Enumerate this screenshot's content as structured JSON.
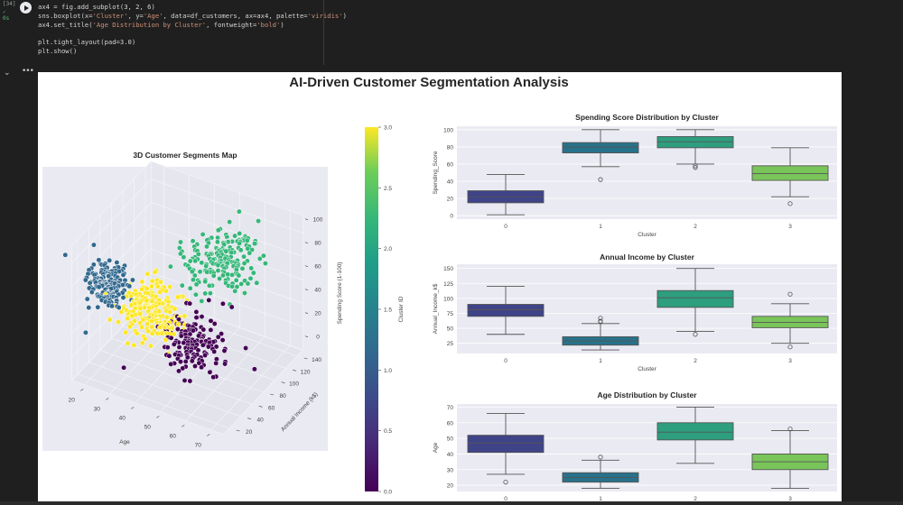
{
  "cell": {
    "execution_count": "[34]",
    "status": "✓ 0s",
    "code_lines": [
      "ax4 = fig.add_subplot(3, 2, 6)",
      "sns.boxplot(x='Cluster', y='Age', data=df_customers, ax=ax4, palette='viridis')",
      "ax4.set_title('Age Distribution by Cluster', fontweight='bold')",
      "",
      "plt.tight_layout(pad=3.0)",
      "plt.show()"
    ]
  },
  "icons": {
    "run": "play-circle-icon",
    "collapse": "chevron-down-icon",
    "more": "ellipsis-icon"
  },
  "figure": {
    "suptitle": "AI-Driven Customer Segmentation Analysis"
  },
  "chart_data": [
    {
      "type": "scatter",
      "subtype": "3d",
      "title": "3D Customer Segments Map",
      "xlabel": "Age",
      "ylabel": "Annual Income (k$)",
      "zlabel": "Spending Score (1-100)",
      "xticks": [
        20,
        30,
        40,
        50,
        60,
        70
      ],
      "yticks": [
        20,
        40,
        60,
        80,
        100,
        120,
        140
      ],
      "zticks": [
        0,
        20,
        40,
        60,
        80,
        100
      ],
      "xlim": [
        15,
        75
      ],
      "ylim": [
        10,
        150
      ],
      "zlim": [
        0,
        110
      ],
      "clusters": [
        {
          "id": 0,
          "color": "#440154",
          "age": 47,
          "income": 80,
          "spending": 22
        },
        {
          "id": 1,
          "color": "#31688e",
          "age": 25,
          "income": 29,
          "spending": 80
        },
        {
          "id": 2,
          "color": "#35b779",
          "age": 54,
          "income": 100,
          "spending": 86
        },
        {
          "id": 3,
          "color": "#fde725",
          "age": 35,
          "income": 60,
          "spending": 49
        }
      ],
      "colorbar": {
        "label": "Cluster ID",
        "ticks": [
          "0.0",
          "0.5",
          "1.0",
          "1.5",
          "2.0",
          "2.5",
          "3.0"
        ],
        "range": [
          0,
          3
        ],
        "colormap": "viridis"
      }
    },
    {
      "type": "box",
      "title": "Spending Score Distribution by Cluster",
      "xlabel": "Cluster",
      "ylabel": "Spending_Score",
      "categories": [
        "0",
        "1",
        "2",
        "3"
      ],
      "yticks": [
        0,
        20,
        40,
        60,
        80,
        100
      ],
      "ylim": [
        -4,
        104
      ],
      "colors": [
        "#3f4388",
        "#27728a",
        "#2d9e7e",
        "#7ac55a"
      ],
      "boxes": [
        {
          "whislo": 1,
          "q1": 15,
          "med": 22,
          "q3": 29,
          "whishi": 48,
          "fliers": []
        },
        {
          "whislo": 57,
          "q1": 73,
          "med": 80,
          "q3": 85,
          "whishi": 100,
          "fliers": [
            42
          ]
        },
        {
          "whislo": 60,
          "q1": 79,
          "med": 86,
          "q3": 92,
          "whishi": 100,
          "fliers": [
            56,
            58
          ]
        },
        {
          "whislo": 22,
          "q1": 41,
          "med": 49,
          "q3": 58,
          "whishi": 79,
          "fliers": [
            14
          ]
        }
      ]
    },
    {
      "type": "box",
      "title": "Annual Income by Cluster",
      "xlabel": "Cluster",
      "ylabel": "Annual_Income_k$",
      "categories": [
        "0",
        "1",
        "2",
        "3"
      ],
      "yticks": [
        25,
        50,
        75,
        100,
        125,
        150
      ],
      "ylim": [
        8,
        157
      ],
      "colors": [
        "#3f4388",
        "#27728a",
        "#2d9e7e",
        "#7ac55a"
      ],
      "boxes": [
        {
          "whislo": 40,
          "q1": 70,
          "med": 81,
          "q3": 90,
          "whishi": 120,
          "fliers": []
        },
        {
          "whislo": 14,
          "q1": 22,
          "med": 29,
          "q3": 36,
          "whishi": 58,
          "fliers": [
            61,
            62,
            67
          ]
        },
        {
          "whislo": 45,
          "q1": 85,
          "med": 101,
          "q3": 113,
          "whishi": 150,
          "fliers": [
            40
          ]
        },
        {
          "whislo": 25,
          "q1": 51,
          "med": 60,
          "q3": 70,
          "whishi": 91,
          "fliers": [
            19,
            107
          ]
        }
      ]
    },
    {
      "type": "box",
      "title": "Age Distribution by Cluster",
      "xlabel": "",
      "ylabel": "Age",
      "categories": [
        "0",
        "1",
        "2",
        "3"
      ],
      "yticks": [
        20,
        30,
        40,
        50,
        60,
        70
      ],
      "ylim": [
        16,
        72
      ],
      "colors": [
        "#3f4388",
        "#27728a",
        "#2d9e7e",
        "#7ac55a"
      ],
      "boxes": [
        {
          "whislo": 27,
          "q1": 41,
          "med": 47,
          "q3": 52,
          "whishi": 66,
          "fliers": [
            22
          ]
        },
        {
          "whislo": 18,
          "q1": 22,
          "med": 25,
          "q3": 28,
          "whishi": 36,
          "fliers": [
            38
          ]
        },
        {
          "whislo": 34,
          "q1": 49,
          "med": 54,
          "q3": 60,
          "whishi": 70,
          "fliers": []
        },
        {
          "whislo": 18,
          "q1": 30,
          "med": 35,
          "q3": 40,
          "whishi": 55,
          "fliers": [
            56
          ]
        }
      ]
    }
  ]
}
